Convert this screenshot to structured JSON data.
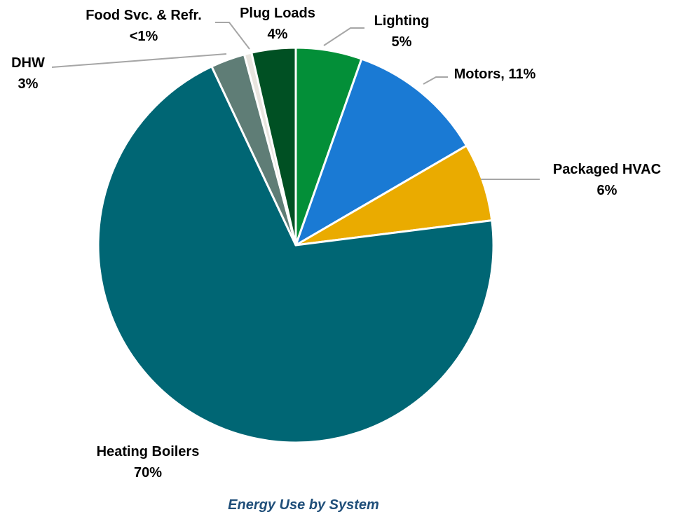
{
  "chart_data": {
    "type": "pie",
    "title": "Energy Use by System",
    "start_angle_deg": 0,
    "direction": "clockwise",
    "legend": "none",
    "slices": [
      {
        "name": "Lighting",
        "value": 5.4,
        "label_lines": [
          "Lighting",
          "5%"
        ],
        "color": "#038f38"
      },
      {
        "name": "Motors",
        "value": 11.2,
        "label_lines": [
          "Motors, 11%"
        ],
        "color": "#1a7ad4"
      },
      {
        "name": "Packaged HVAC",
        "value": 6.4,
        "label_lines": [
          "Packaged HVAC",
          "6%"
        ],
        "color": "#eaab00"
      },
      {
        "name": "Heating Boilers",
        "value": 70.0,
        "label_lines": [
          "Heating Boilers",
          "70%"
        ],
        "color": "#006674"
      },
      {
        "name": "DHW",
        "value": 2.8,
        "label_lines": [
          "DHW",
          "3%"
        ],
        "color": "#5f7d76"
      },
      {
        "name": "Food Svc. & Refr.",
        "value": 0.6,
        "label_lines": [
          "Food Svc. & Refr.",
          "<1%"
        ],
        "color": "#e9e5df"
      },
      {
        "name": "Plug Loads",
        "value": 3.6,
        "label_lines": [
          "Plug Loads",
          "4%"
        ],
        "color": "#005023"
      }
    ]
  }
}
